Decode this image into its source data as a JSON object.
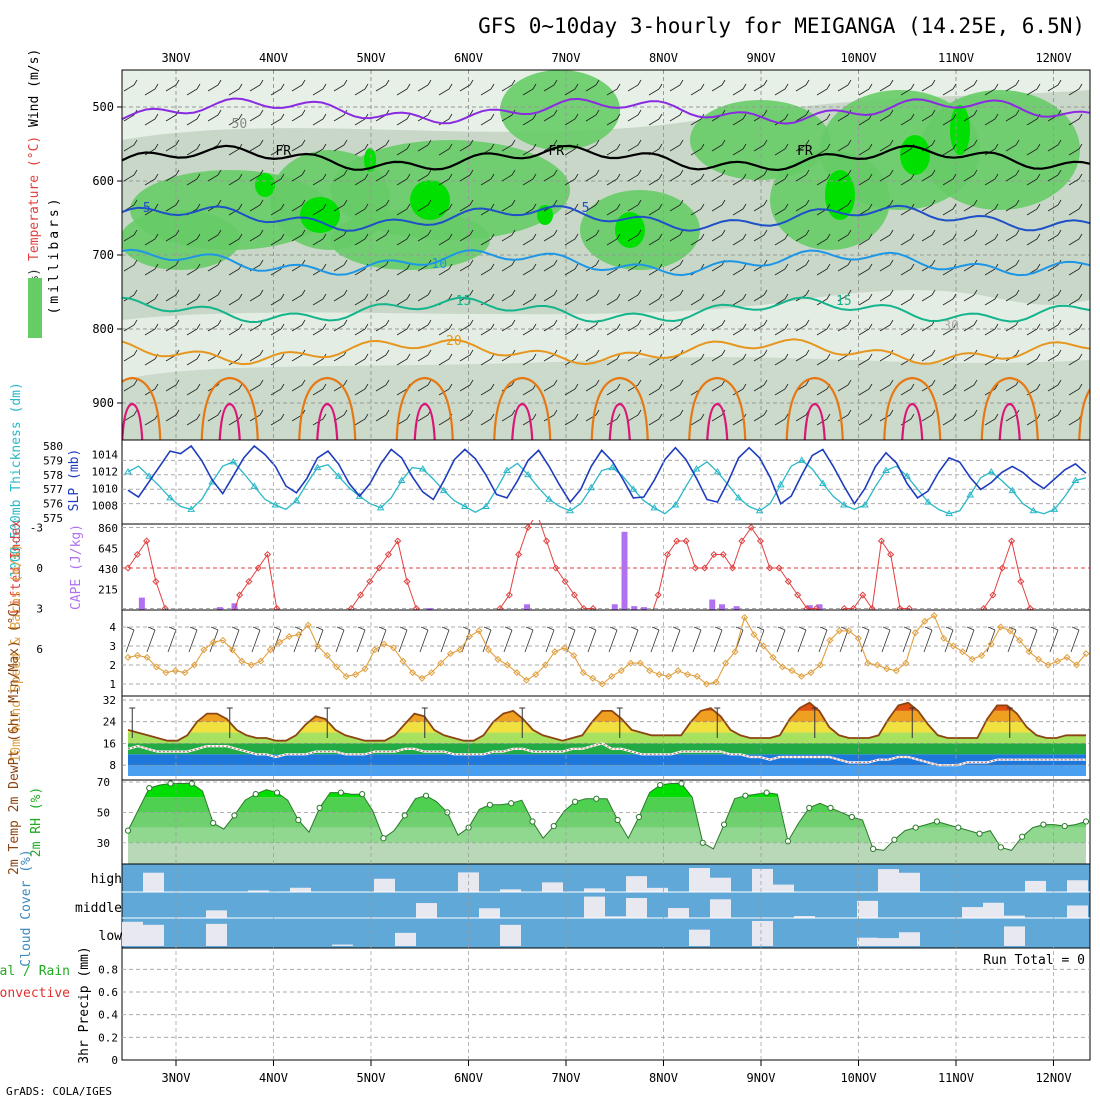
{
  "title": "GFS 0~10day 3-hourly for MEIGANGA (14.25E, 6.5N)",
  "credit": "GrADS: COLA/IGES",
  "colors": {
    "rh_light": "#e6f0e6",
    "rh_mid": "#c4d4c4",
    "rh_green": "#66cc66",
    "rh_bright": "#00e000",
    "t_purple": "#8a2be2",
    "t_black": "#000000",
    "t_blue5": "#1e50c8",
    "t_blue10": "#1e96e6",
    "t_teal15": "#14b48c",
    "t_orange20": "#e6961e",
    "t_orange25": "#e67814",
    "t_magenta": "#dc1478",
    "thk": "#2ab8c8",
    "slp": "#1e3cbe",
    "li": "#e04040",
    "cape": "#b070f0",
    "wind10m": "#e0a040",
    "temp2m": "#8b4513",
    "dewpt": "#c06060",
    "rh2m": "#22aa22",
    "cloud": "#5fa8d8",
    "cloud_clear": "#e8e8f0"
  },
  "chart_data": {
    "type": "meteogram",
    "x_dates": [
      "3NOV",
      "4NOV",
      "5NOV",
      "6NOV",
      "7NOV",
      "8NOV",
      "9NOV",
      "10NOV",
      "11NOV",
      "12NOV"
    ],
    "panels": [
      {
        "id": "upper_air",
        "ylabel": "(millibars)",
        "ylabel_parts": [
          "RH (%)",
          "Temperature (°C)",
          "Wind (m/s)"
        ],
        "yticks": [
          500,
          600,
          700,
          800,
          900
        ],
        "ylim": [
          450,
          950
        ],
        "contour_labels": [
          {
            "text": "FR",
            "day": 1.1
          },
          {
            "text": "FR",
            "day": 3.9
          },
          {
            "text": "FR",
            "day": 6.45
          },
          {
            "text": "5",
            "day": -0.3
          },
          {
            "text": "5",
            "day": 4.2
          },
          {
            "text": "10",
            "day": 2.7
          },
          {
            "text": "15",
            "day": 2.95
          },
          {
            "text": "15",
            "day": 6.85
          },
          {
            "text": "20",
            "day": 2.85
          },
          {
            "text": "50",
            "day": 0.65
          },
          {
            "text": "30",
            "day": 7.95
          }
        ],
        "isotherms": [
          {
            "name": "purple",
            "p": 505
          },
          {
            "name": "FR",
            "p": 570
          },
          {
            "name": "5",
            "p": 650
          },
          {
            "name": "10",
            "p": 710
          },
          {
            "name": "15",
            "p": 775
          },
          {
            "name": "20",
            "p": 830
          }
        ]
      },
      {
        "id": "thickness_slp",
        "ylabel_left": "1000-500mb Thickness (dm)",
        "ylabel_right": "SLP (mb)",
        "yticks_left": [
          575,
          576,
          577,
          578,
          579,
          580
        ],
        "yticks_right": [
          1008,
          1010,
          1012,
          1014
        ],
        "thickness": [
          578.2,
          578.6,
          577.9,
          577.2,
          576.4,
          575.8,
          575.6,
          576.3,
          577.5,
          578.6,
          578.9,
          578.1,
          577.2,
          576.3,
          575.9,
          575.6,
          576.2,
          577.4,
          578.5,
          578.7,
          577.9,
          577.1,
          576.5,
          576.0,
          575.7,
          576.4,
          577.6,
          578.5,
          578.4,
          577.7,
          576.9,
          576.2,
          575.8,
          575.4,
          575.8,
          577.0,
          578.3,
          578.8,
          578.0,
          577.1,
          576.3,
          575.8,
          575.5,
          576.0,
          577.1,
          578.3,
          578.5,
          577.9,
          577.0,
          576.2,
          575.7,
          575.3,
          575.9,
          577.2,
          578.4,
          578.9,
          578.2,
          577.3,
          576.4,
          575.8,
          575.5,
          576.0,
          577.3,
          578.6,
          579.0,
          578.4,
          577.4,
          576.5,
          575.9,
          575.6,
          575.9,
          577.2,
          578.3,
          578.6,
          577.9,
          577.0,
          576.1,
          575.6,
          575.3,
          575.5,
          576.6,
          577.8,
          578.2,
          577.6,
          576.9,
          576.0,
          575.5,
          575.3,
          575.6,
          576.5,
          577.6,
          577.8
        ],
        "slp": [
          1009.8,
          1009.0,
          1010.8,
          1012.6,
          1014.4,
          1014.1,
          1015.0,
          1013.3,
          1011.0,
          1009.4,
          1011.5,
          1013.6,
          1015.0,
          1014.0,
          1012.6,
          1010.3,
          1009.5,
          1011.2,
          1013.6,
          1014.4,
          1012.9,
          1010.6,
          1009.1,
          1010.6,
          1012.9,
          1014.6,
          1013.6,
          1011.4,
          1009.6,
          1008.7,
          1010.9,
          1013.4,
          1014.6,
          1013.5,
          1011.6,
          1009.3,
          1008.9,
          1010.9,
          1013.3,
          1014.5,
          1012.6,
          1010.4,
          1008.4,
          1009.9,
          1012.6,
          1014.5,
          1013.2,
          1011.1,
          1008.9,
          1009.0,
          1011.0,
          1013.4,
          1014.8,
          1013.4,
          1011.2,
          1008.7,
          1008.4,
          1010.8,
          1013.6,
          1014.8,
          1013.6,
          1011.3,
          1008.2,
          1009.1,
          1011.6,
          1013.9,
          1014.6,
          1012.6,
          1010.3,
          1008.2,
          1010.0,
          1012.6,
          1014.2,
          1013.0,
          1010.6,
          1008.9,
          1009.7,
          1011.9,
          1013.6,
          1013.1,
          1011.3,
          1009.9,
          1010.7,
          1011.9,
          1012.6,
          1011.9,
          1010.8,
          1010.0,
          1011.1,
          1012.2,
          1012.9,
          1011.8
        ]
      },
      {
        "id": "li_cape",
        "ylabel_left": "Lifted Index",
        "ylabel_right": "CAPE (J/kg)",
        "yticks_left": [
          -3,
          0,
          3,
          6
        ],
        "yticks_right": [
          215,
          430,
          645,
          860
        ],
        "lifted_index": [
          0,
          -1,
          -2,
          1,
          3,
          5,
          6,
          7,
          7,
          7,
          6,
          4,
          2,
          1,
          0,
          -1,
          3,
          5,
          7,
          7,
          7,
          7,
          6,
          4,
          3,
          2,
          1,
          0,
          -1,
          -2,
          1,
          3,
          5,
          7,
          7,
          7,
          7,
          6,
          5,
          4,
          3,
          2,
          -1,
          -3,
          -4,
          -2,
          0,
          1,
          2,
          3,
          3,
          4,
          5,
          6,
          6,
          5,
          4,
          2,
          -1,
          -2,
          -2,
          0,
          0,
          -1,
          -1,
          0,
          -2,
          -3,
          -2,
          0,
          0,
          1,
          2,
          3,
          3,
          4,
          4,
          3,
          3,
          2,
          3,
          -2,
          -1,
          3,
          3,
          6,
          6,
          7,
          6,
          6,
          5,
          4,
          3,
          2,
          0,
          -2,
          1,
          3,
          5,
          6,
          6,
          6,
          6,
          7
        ],
        "cape_bars": [
          {
            "day": -0.35,
            "v": 130
          },
          {
            "day": 0.45,
            "v": 30
          },
          {
            "day": 0.6,
            "v": 70
          },
          {
            "day": 2.6,
            "v": 20
          },
          {
            "day": 3.6,
            "v": 60
          },
          {
            "day": 4.5,
            "v": 60
          },
          {
            "day": 4.6,
            "v": 820
          },
          {
            "day": 4.7,
            "v": 40
          },
          {
            "day": 4.8,
            "v": 30
          },
          {
            "day": 5.5,
            "v": 110
          },
          {
            "day": 5.6,
            "v": 60
          },
          {
            "day": 5.75,
            "v": 40
          },
          {
            "day": 6.5,
            "v": 50
          },
          {
            "day": 6.6,
            "v": 60
          }
        ]
      },
      {
        "id": "wind10m",
        "ylabel": "10m Wind Speed & Barbs (m/s)",
        "yticks": [
          1,
          2,
          3,
          4
        ],
        "speed": [
          2.4,
          2.5,
          2.4,
          1.9,
          1.6,
          1.7,
          1.6,
          2.0,
          2.8,
          3.2,
          3.3,
          2.8,
          2.2,
          2.0,
          2.2,
          2.8,
          3.2,
          3.5,
          3.6,
          4.1,
          3.0,
          2.5,
          1.9,
          1.4,
          1.5,
          1.8,
          2.8,
          3.1,
          2.9,
          2.2,
          1.6,
          1.3,
          1.6,
          2.1,
          2.6,
          2.8,
          3.5,
          3.8,
          2.8,
          2.3,
          2.0,
          1.6,
          1.2,
          1.5,
          2.0,
          2.7,
          2.9,
          2.5,
          1.6,
          1.3,
          1.0,
          1.4,
          1.7,
          2.1,
          2.1,
          1.7,
          1.5,
          1.4,
          1.7,
          1.5,
          1.4,
          1.0,
          1.1,
          2.1,
          2.7,
          4.5,
          3.6,
          3.0,
          2.4,
          1.9,
          1.7,
          1.4,
          1.6,
          2.0,
          3.3,
          3.8,
          3.8,
          3.4,
          2.1,
          2.0,
          1.8,
          1.7,
          2.1,
          3.7,
          4.3,
          4.6,
          3.4,
          3.0,
          2.7,
          2.3,
          2.5,
          3.1,
          4.0,
          3.8,
          3.3,
          2.7,
          2.3,
          2.0,
          2.2,
          2.4,
          2.0,
          2.6
        ]
      },
      {
        "id": "temp2m",
        "ylabel": "2m Temp 2m DewPt (6hr Min/Max) (°C)",
        "yticks": [
          8,
          16,
          24,
          32
        ],
        "temp": [
          21,
          20,
          19,
          18,
          17,
          17,
          19,
          24,
          27,
          27,
          25,
          21,
          19,
          18,
          18,
          17,
          17,
          19,
          23,
          26,
          25,
          21,
          19,
          18,
          17,
          17,
          17,
          19,
          23,
          27,
          26,
          21,
          19,
          18,
          17,
          17,
          19,
          24,
          27,
          28,
          25,
          21,
          19,
          18,
          17,
          18,
          19,
          24,
          28,
          28,
          25,
          21,
          20,
          19,
          19,
          19,
          19,
          24,
          28,
          29,
          26,
          21,
          19,
          18,
          18,
          18,
          19,
          25,
          29,
          31,
          28,
          22,
          19,
          18,
          18,
          18,
          19,
          25,
          30,
          31,
          28,
          23,
          19,
          18,
          18,
          18,
          18,
          25,
          30,
          30,
          27,
          22,
          19,
          18,
          18,
          19,
          19,
          19
        ],
        "dewpt": [
          14,
          15,
          14,
          13,
          13,
          13,
          13,
          14,
          15,
          15,
          15,
          14,
          13,
          12,
          12,
          11,
          12,
          12,
          12,
          13,
          13,
          13,
          12,
          12,
          12,
          13,
          13,
          13,
          14,
          14,
          13,
          13,
          13,
          12,
          12,
          12,
          12,
          13,
          13,
          14,
          14,
          13,
          13,
          13,
          13,
          14,
          14,
          15,
          16,
          14,
          14,
          13,
          12,
          12,
          12,
          12,
          13,
          13,
          13,
          13,
          13,
          12,
          12,
          11,
          11,
          10,
          11,
          11,
          11,
          11,
          11,
          11,
          10,
          9,
          9,
          9,
          10,
          10,
          11,
          11,
          10,
          9,
          8,
          8,
          8,
          9,
          9,
          9,
          10,
          10,
          10,
          10,
          10,
          10,
          10,
          10,
          10,
          10
        ]
      },
      {
        "id": "rh2m",
        "ylabel": "2m RH (%)",
        "yticks": [
          30,
          50,
          70
        ],
        "rh": [
          38,
          52,
          66,
          68,
          69,
          69,
          69,
          64,
          43,
          39,
          48,
          58,
          62,
          65,
          63,
          58,
          45,
          37,
          53,
          63,
          63,
          62,
          62,
          51,
          33,
          38,
          48,
          59,
          61,
          57,
          50,
          35,
          40,
          52,
          55,
          55,
          56,
          58,
          44,
          33,
          41,
          51,
          57,
          59,
          59,
          59,
          45,
          33,
          47,
          63,
          68,
          69,
          69,
          60,
          30,
          26,
          42,
          59,
          61,
          62,
          63,
          62,
          31,
          43,
          53,
          56,
          53,
          50,
          47,
          45,
          26,
          25,
          32,
          38,
          40,
          42,
          44,
          42,
          40,
          38,
          36,
          38,
          27,
          25,
          34,
          40,
          42,
          42,
          41,
          42,
          44
        ]
      },
      {
        "id": "cloud",
        "ylabel": "Cloud Cover (%)",
        "levels": [
          "high",
          "middle",
          "low"
        ]
      },
      {
        "id": "precip",
        "ylabel": "3hr Precip (mm)",
        "ylabel_left": [
          "Total / Rain",
          "Convective"
        ],
        "yticks": [
          0,
          0.2,
          0.4,
          0.6,
          0.8
        ],
        "run_total": "Run Total = 0"
      }
    ]
  }
}
